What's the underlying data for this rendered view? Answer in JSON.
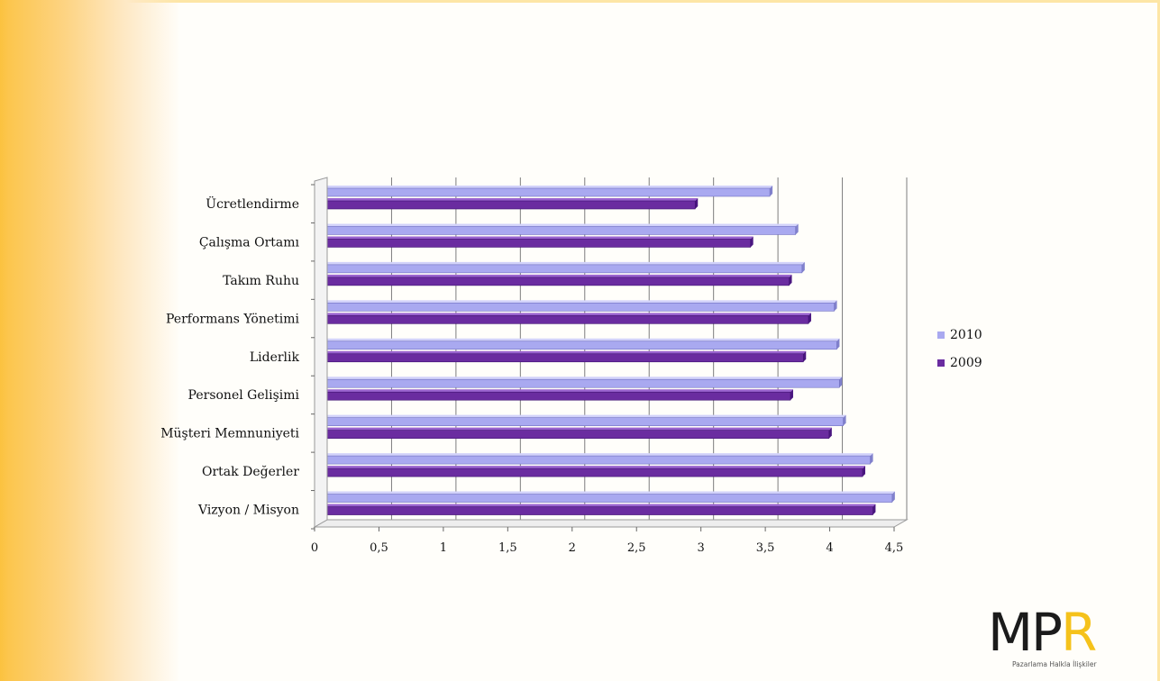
{
  "chart_data": {
    "type": "bar",
    "orientation": "horizontal",
    "categories": [
      "Ücretlendirme",
      "Çalışma Ortamı",
      "Takım Ruhu",
      "Performans Yönetimi",
      "Liderlik",
      "Personel Gelişimi",
      "Müşteri Memnuniyeti",
      "Ortak Değerler",
      "Vizyon / Misyon"
    ],
    "series": [
      {
        "name": "2010",
        "color": "#a9a9f0",
        "values": [
          3.5,
          3.7,
          3.75,
          4.0,
          4.02,
          4.04,
          4.07,
          4.28,
          4.45
        ]
      },
      {
        "name": "2009",
        "color": "#6a2ca0",
        "values": [
          2.92,
          3.35,
          3.65,
          3.8,
          3.76,
          3.66,
          3.96,
          4.22,
          4.3
        ]
      }
    ],
    "x_ticks": [
      "0",
      "0,5",
      "1",
      "1,5",
      "2",
      "2,5",
      "3",
      "3,5",
      "4",
      "4,5"
    ],
    "xlim": [
      0,
      4.5
    ],
    "grid": true,
    "legend": "right",
    "title": "",
    "xlabel": "",
    "ylabel": ""
  },
  "logo": {
    "letters": [
      "M",
      "P",
      "R"
    ],
    "tagline": "Pazarlama Halkla İlişkiler"
  }
}
